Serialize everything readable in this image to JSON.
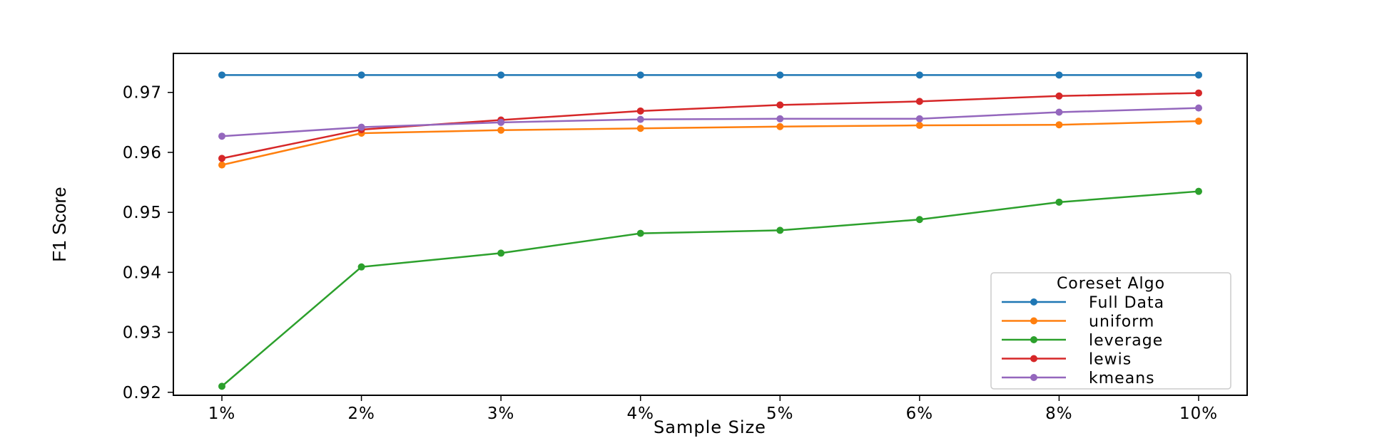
{
  "chart_data": {
    "type": "line",
    "xlabel": "Sample Size",
    "ylabel": "F1 Score",
    "categories": [
      "1%",
      "2%",
      "3%",
      "4%",
      "5%",
      "6%",
      "8%",
      "10%"
    ],
    "ylim": [
      0.9195,
      0.9765
    ],
    "yticks": [
      0.92,
      0.93,
      0.94,
      0.95,
      0.96,
      0.97
    ],
    "ytick_labels": [
      "0.92",
      "0.93",
      "0.94",
      "0.95",
      "0.96",
      "0.97"
    ],
    "grid": false,
    "legend": {
      "title": "Coreset Algo",
      "position": "lower-right"
    },
    "series": [
      {
        "name": "Full Data",
        "color": "#1f77b4",
        "values": [
          0.9729,
          0.9729,
          0.9729,
          0.9729,
          0.9729,
          0.9729,
          0.9729,
          0.9729
        ]
      },
      {
        "name": "uniform",
        "color": "#ff7f0e",
        "values": [
          0.9579,
          0.9632,
          0.9637,
          0.964,
          0.9643,
          0.9645,
          0.9646,
          0.9652
        ]
      },
      {
        "name": "leverage",
        "color": "#2ca02c",
        "values": [
          0.921,
          0.9409,
          0.9432,
          0.9465,
          0.947,
          0.9488,
          0.9517,
          0.9535
        ]
      },
      {
        "name": "lewis",
        "color": "#d62728",
        "values": [
          0.959,
          0.9638,
          0.9654,
          0.9669,
          0.9679,
          0.9685,
          0.9694,
          0.9699
        ]
      },
      {
        "name": "kmeans",
        "color": "#9467bd",
        "values": [
          0.9627,
          0.9642,
          0.965,
          0.9655,
          0.9656,
          0.9656,
          0.9667,
          0.9674
        ]
      }
    ]
  }
}
